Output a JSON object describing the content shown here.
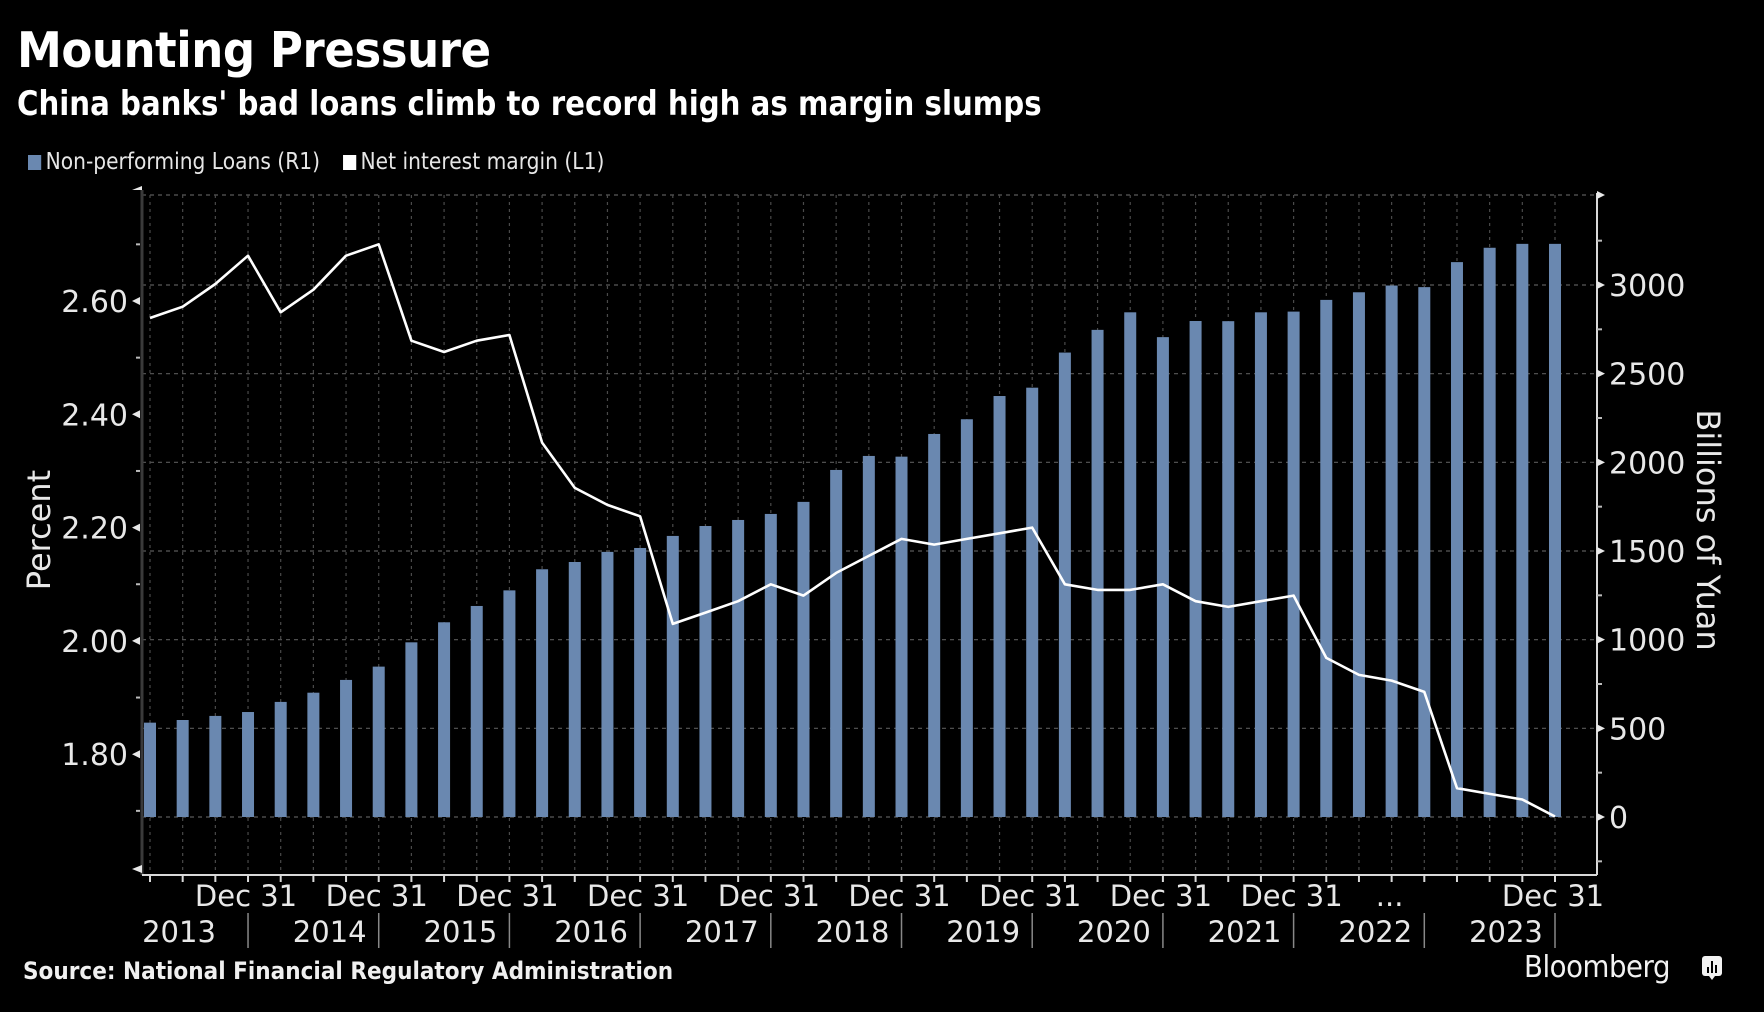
{
  "title": "Mounting Pressure",
  "subtitle": "China banks' bad loans climb to record high as margin slumps",
  "source": "Source: National Financial Regulatory Administration",
  "brand": "Bloomberg",
  "brand_icon": "bloomberg-chart-icon",
  "colors": {
    "bars": "#6a88b0",
    "line": "#ffffff",
    "background": "#000000"
  },
  "chart_data": {
    "type": "bar+line",
    "title": "Mounting Pressure",
    "subtitle": "China banks' bad loans climb to record high as margin slumps",
    "legend": [
      "Non-performing Loans (R1)",
      "Net interest margin (L1)"
    ],
    "legend_position": "top-left",
    "grid": true,
    "categories": [
      "Q1 2013",
      "Q2 2013",
      "Q3 2013",
      "Q4 2013",
      "Q1 2014",
      "Q2 2014",
      "Q3 2014",
      "Q4 2014",
      "Q1 2015",
      "Q2 2015",
      "Q3 2015",
      "Q4 2015",
      "Q1 2016",
      "Q2 2016",
      "Q3 2016",
      "Q4 2016",
      "Q1 2017",
      "Q2 2017",
      "Q3 2017",
      "Q4 2017",
      "Q1 2018",
      "Q2 2018",
      "Q3 2018",
      "Q4 2018",
      "Q1 2019",
      "Q2 2019",
      "Q3 2019",
      "Q4 2019",
      "Q1 2020",
      "Q2 2020",
      "Q3 2020",
      "Q4 2020",
      "Q1 2021",
      "Q2 2021",
      "Q3 2021",
      "Q4 2021",
      "Q1 2022",
      "Q2 2022",
      "Q3 2022",
      "Q4 2022",
      "Q1 2023",
      "Q2 2023",
      "Q3 2023",
      "Q4 2023"
    ],
    "series": [
      {
        "name": "Non-performing Loans (R1)",
        "type": "bar",
        "axis": "right",
        "values": [
          532,
          547,
          570,
          592,
          649,
          701,
          773,
          848,
          985,
          1098,
          1190,
          1278,
          1397,
          1438,
          1495,
          1517,
          1585,
          1641,
          1675,
          1709,
          1777,
          1957,
          2036,
          2032,
          2160,
          2243,
          2374,
          2421,
          2619,
          2747,
          2846,
          2706,
          2797,
          2796,
          2846,
          2850,
          2916,
          2959,
          2997,
          2988,
          3129,
          3210,
          3232,
          3232
        ]
      },
      {
        "name": "Net interest margin (L1)",
        "type": "line",
        "axis": "left",
        "values": [
          2.57,
          2.59,
          2.63,
          2.68,
          2.58,
          2.62,
          2.68,
          2.7,
          2.53,
          2.51,
          2.53,
          2.54,
          2.35,
          2.27,
          2.24,
          2.22,
          2.03,
          2.05,
          2.07,
          2.1,
          2.08,
          2.12,
          2.15,
          2.18,
          2.17,
          2.18,
          2.19,
          2.2,
          2.1,
          2.09,
          2.09,
          2.1,
          2.07,
          2.06,
          2.07,
          2.08,
          1.97,
          1.94,
          1.93,
          1.91,
          1.74,
          1.73,
          1.72,
          1.69
        ]
      }
    ],
    "left_axis": {
      "label": "Percent",
      "ticks": [
        "1.80",
        "2.00",
        "2.20",
        "2.40",
        "2.60"
      ],
      "range": [
        1.6,
        2.78
      ]
    },
    "right_axis": {
      "label": "Billions of Yuan",
      "ticks": [
        "0",
        "500",
        "1000",
        "1500",
        "2000",
        "2500",
        "3000"
      ],
      "range": [
        -300,
        3520
      ]
    },
    "x_axis": {
      "quarter_labels": [
        "Dec 31",
        "Dec 31",
        "Dec 31",
        "Dec 31",
        "Dec 31",
        "Dec 31",
        "Dec 31",
        "Dec 31",
        "Dec 31",
        "...",
        "Dec 31"
      ],
      "quarter_label_index": [
        3,
        7,
        11,
        15,
        19,
        23,
        27,
        31,
        35,
        38,
        43
      ],
      "years": [
        "2013",
        "2014",
        "2015",
        "2016",
        "2017",
        "2018",
        "2019",
        "2020",
        "2021",
        "2022",
        "2023"
      ]
    }
  }
}
